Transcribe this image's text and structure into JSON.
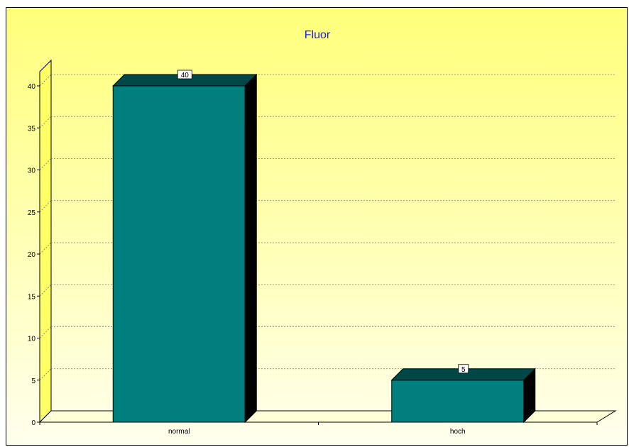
{
  "chart_data": {
    "type": "bar",
    "title": "Fluor",
    "categories": [
      "normal",
      "hoch"
    ],
    "values": [
      40,
      5
    ],
    "ylim": [
      0,
      40
    ],
    "yticks": [
      0,
      5,
      10,
      15,
      20,
      25,
      30,
      35,
      40
    ],
    "xlabel": "",
    "ylabel": "",
    "grid": true,
    "bar_color": "#007f7f",
    "bar_top_color": "#004848",
    "bar_side_color": "#000000",
    "wall_color": "#ffff66",
    "title_color": "#1f1fd8"
  }
}
